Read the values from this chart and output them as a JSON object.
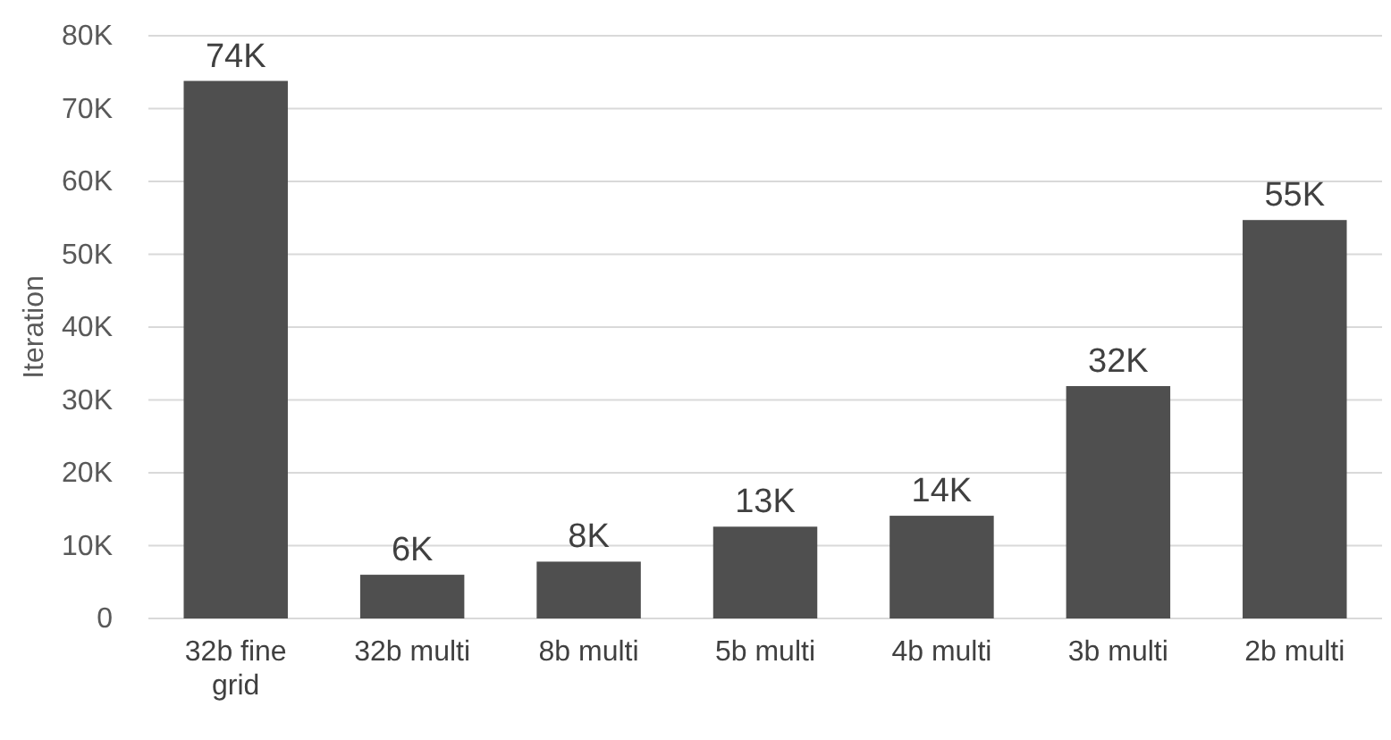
{
  "chart_data": {
    "type": "bar",
    "ylabel": "Iteration",
    "categories": [
      "32b fine grid",
      "32b multi",
      "8b multi",
      "5b multi",
      "4b multi",
      "3b multi",
      "2b multi"
    ],
    "values": [
      73800,
      6000,
      7800,
      12600,
      14100,
      31900,
      54700
    ],
    "value_labels": [
      "74K",
      "6K",
      "8K",
      "13K",
      "14K",
      "32K",
      "55K"
    ],
    "color": "#4f4f4f",
    "ylim": [
      0,
      80000
    ],
    "yticks": [
      {
        "value": 0,
        "label": "0"
      },
      {
        "value": 10000,
        "label": "10K"
      },
      {
        "value": 20000,
        "label": "20K"
      },
      {
        "value": 30000,
        "label": "30K"
      },
      {
        "value": 40000,
        "label": "40K"
      },
      {
        "value": 50000,
        "label": "50K"
      },
      {
        "value": 60000,
        "label": "60K"
      },
      {
        "value": 70000,
        "label": "70K"
      },
      {
        "value": 80000,
        "label": "80K"
      }
    ],
    "grid": "y"
  }
}
